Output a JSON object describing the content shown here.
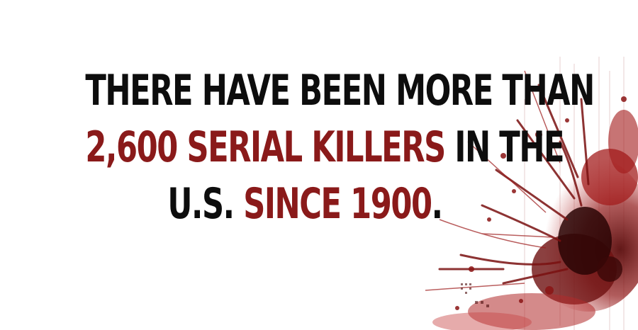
{
  "headline": {
    "line1": {
      "part1": "THERE HAVE BEEN MORE THAN"
    },
    "line2": {
      "part1": "2,600 SERIAL KILLERS",
      "part2": " IN THE"
    },
    "line3": {
      "part1": "U.S. ",
      "part2": "SINCE 1900",
      "part3": "."
    }
  },
  "colors": {
    "text": "#0d0d0d",
    "accent": "#8a1a1a",
    "background": "#ffffff"
  },
  "decoration": {
    "icon": "blood-splatter"
  }
}
